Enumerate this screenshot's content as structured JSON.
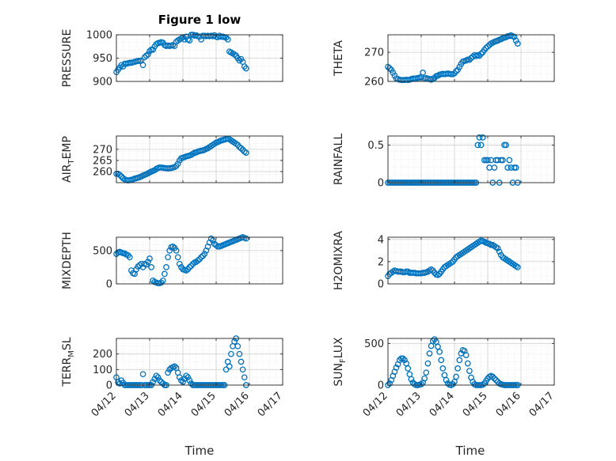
{
  "figure": {
    "title": "Figure 1 low",
    "xlabel": "Time",
    "xticks": [
      "04/12",
      "04/13",
      "04/14",
      "04/15",
      "04/16",
      "04/17"
    ],
    "marker_color": "#0072BD",
    "grid_color": "#dedede"
  },
  "chart_data": [
    {
      "type": "scatter",
      "ylabel": "PRESSURE",
      "ylim": [
        900,
        1000
      ],
      "yticks": [
        900,
        950,
        1000
      ],
      "xlim": [
        0,
        5
      ],
      "grid": "on",
      "x": [
        0.0,
        0.05,
        0.1,
        0.15,
        0.2,
        0.25,
        0.3,
        0.35,
        0.4,
        0.45,
        0.5,
        0.55,
        0.6,
        0.65,
        0.7,
        0.75,
        0.8,
        0.85,
        0.9,
        0.95,
        1.0,
        1.05,
        1.1,
        1.15,
        1.2,
        1.25,
        1.3,
        1.35,
        1.4,
        1.45,
        1.5,
        1.55,
        1.6,
        1.65,
        1.7,
        1.75,
        1.8,
        1.85,
        1.9,
        1.95,
        2.0,
        2.05,
        2.1,
        2.15,
        2.2,
        2.25,
        2.3,
        2.35,
        2.4,
        2.45,
        2.5,
        2.55,
        2.6,
        2.65,
        2.7,
        2.75,
        2.8,
        2.85,
        2.9,
        2.95,
        3.0,
        3.05,
        3.1,
        3.15,
        3.2,
        3.25,
        3.3,
        3.35,
        3.4,
        3.45,
        3.5,
        3.55,
        3.6,
        3.65,
        3.7,
        3.75,
        3.8,
        3.85,
        3.9
      ],
      "values": [
        920,
        925,
        930,
        935,
        932,
        938,
        938,
        939,
        940,
        940,
        941,
        942,
        943,
        944,
        944,
        945,
        935,
        952,
        955,
        958,
        965,
        968,
        968,
        975,
        980,
        982,
        983,
        984,
        983,
        978,
        976,
        977,
        976,
        977,
        978,
        976,
        985,
        988,
        990,
        992,
        995,
        990,
        996,
        990,
        988,
        1000,
        1000,
        998,
        999,
        997,
        996,
        990,
        998,
        998,
        997,
        998,
        997,
        998,
        997,
        999,
        996,
        995,
        998,
        996,
        996,
        995,
        994,
        990,
        964,
        962,
        960,
        958,
        955,
        950,
        945,
        948,
        942,
        932,
        928
      ]
    },
    {
      "type": "scatter",
      "ylabel": "THETA",
      "ylim": [
        260,
        276
      ],
      "yticks": [
        260,
        270
      ],
      "xlim": [
        0,
        5
      ],
      "grid": "on",
      "x": [
        0.0,
        0.05,
        0.1,
        0.15,
        0.2,
        0.25,
        0.3,
        0.35,
        0.4,
        0.45,
        0.5,
        0.55,
        0.6,
        0.65,
        0.7,
        0.75,
        0.8,
        0.85,
        0.9,
        0.95,
        1.0,
        1.05,
        1.1,
        1.15,
        1.2,
        1.25,
        1.3,
        1.35,
        1.4,
        1.45,
        1.5,
        1.55,
        1.6,
        1.65,
        1.7,
        1.75,
        1.8,
        1.85,
        1.9,
        1.95,
        2.0,
        2.05,
        2.1,
        2.15,
        2.2,
        2.25,
        2.3,
        2.35,
        2.4,
        2.45,
        2.5,
        2.55,
        2.6,
        2.65,
        2.7,
        2.75,
        2.8,
        2.85,
        2.9,
        2.95,
        3.0,
        3.05,
        3.1,
        3.15,
        3.2,
        3.25,
        3.3,
        3.35,
        3.4,
        3.45,
        3.5,
        3.55,
        3.6,
        3.65,
        3.7,
        3.75,
        3.8,
        3.85,
        3.9
      ],
      "values": [
        265,
        264.5,
        264,
        263,
        262,
        261,
        260.8,
        260.6,
        260.5,
        260.5,
        260.5,
        260.6,
        260.5,
        260.6,
        260.8,
        261,
        261,
        261,
        261.2,
        261.3,
        261.5,
        263,
        261,
        261.1,
        261,
        260.8,
        260.6,
        261,
        261.2,
        261.8,
        262,
        262.3,
        262.5,
        262.6,
        262.5,
        262.6,
        262.7,
        262.6,
        262.5,
        262.5,
        262.8,
        263.5,
        264,
        265,
        266,
        266.8,
        267,
        267.2,
        267.5,
        267.4,
        268,
        268.5,
        269,
        268.7,
        269,
        268.8,
        269.5,
        270,
        270.8,
        271.5,
        272,
        272.5,
        273,
        273.3,
        273.6,
        273.8,
        274,
        274.3,
        274.5,
        274.8,
        275,
        275.2,
        275.5,
        275.6,
        275.8,
        275.5,
        275.3,
        274,
        273
      ]
    },
    {
      "type": "scatter",
      "ylabel": "AIR_TEMP",
      "ylim": [
        255,
        276
      ],
      "yticks": [
        260,
        265,
        270
      ],
      "xlim": [
        0,
        5
      ],
      "grid": "on",
      "x": [
        0.0,
        0.05,
        0.1,
        0.15,
        0.2,
        0.25,
        0.3,
        0.35,
        0.4,
        0.45,
        0.5,
        0.55,
        0.6,
        0.65,
        0.7,
        0.75,
        0.8,
        0.85,
        0.9,
        0.95,
        1.0,
        1.05,
        1.1,
        1.15,
        1.2,
        1.25,
        1.3,
        1.35,
        1.4,
        1.45,
        1.5,
        1.55,
        1.6,
        1.65,
        1.7,
        1.75,
        1.8,
        1.85,
        1.9,
        1.95,
        2.0,
        2.05,
        2.1,
        2.15,
        2.2,
        2.25,
        2.3,
        2.35,
        2.4,
        2.45,
        2.5,
        2.55,
        2.6,
        2.65,
        2.7,
        2.75,
        2.8,
        2.85,
        2.9,
        2.95,
        3.0,
        3.05,
        3.1,
        3.15,
        3.2,
        3.25,
        3.3,
        3.35,
        3.4,
        3.45,
        3.5,
        3.55,
        3.6,
        3.65,
        3.7,
        3.75,
        3.8,
        3.85,
        3.9
      ],
      "values": [
        259,
        259,
        258.5,
        257.8,
        257,
        256.5,
        256.2,
        256,
        256.1,
        256.3,
        256.5,
        256.8,
        257,
        257.2,
        257.5,
        257.8,
        258.2,
        258.5,
        258.8,
        259.2,
        259.6,
        260,
        260.3,
        260.6,
        261.2,
        261.6,
        261.8,
        261.8,
        261.7,
        261.6,
        261.5,
        261.4,
        261.5,
        261.6,
        261.8,
        262,
        262.5,
        263.5,
        265,
        266,
        266.2,
        266.5,
        266.8,
        267,
        267.2,
        267.5,
        268,
        268.5,
        268.6,
        269,
        269.2,
        269.4,
        269.5,
        269.8,
        270.2,
        270.5,
        271,
        271.5,
        272,
        272.5,
        273,
        273.3,
        273.6,
        274,
        274.2,
        274.4,
        274.6,
        274.8,
        274.5,
        274,
        273.5,
        273,
        272.5,
        272,
        271,
        270.5,
        269.8,
        269,
        268.5
      ]
    },
    {
      "type": "scatter",
      "ylabel": "RAINFALL",
      "ylim": [
        0,
        0.62
      ],
      "yticks": [
        0,
        0.5
      ],
      "xlim": [
        0,
        5
      ],
      "grid": "on",
      "x": [
        0.0,
        0.05,
        0.1,
        0.15,
        0.2,
        0.25,
        0.3,
        0.35,
        0.4,
        0.45,
        0.5,
        0.55,
        0.6,
        0.65,
        0.7,
        0.75,
        0.8,
        0.85,
        0.9,
        0.95,
        1.0,
        1.05,
        1.1,
        1.15,
        1.2,
        1.25,
        1.3,
        1.35,
        1.4,
        1.45,
        1.5,
        1.55,
        1.6,
        1.65,
        1.7,
        1.75,
        1.8,
        1.85,
        1.9,
        1.95,
        2.0,
        2.05,
        2.1,
        2.15,
        2.2,
        2.25,
        2.3,
        2.35,
        2.4,
        2.45,
        2.5,
        2.55,
        2.6,
        2.65,
        2.7,
        2.75,
        2.8,
        2.85,
        2.9,
        2.95,
        3.0,
        3.05,
        3.1,
        3.15,
        3.2,
        3.25,
        3.3,
        3.35,
        3.4,
        3.45,
        3.5,
        3.55,
        3.6,
        3.65,
        3.7,
        3.75,
        3.8,
        3.85,
        3.9
      ],
      "values": [
        0,
        0,
        0,
        0,
        0,
        0,
        0,
        0,
        0,
        0,
        0,
        0,
        0,
        0,
        0,
        0,
        0,
        0,
        0,
        0,
        0,
        0,
        0,
        0,
        0,
        0,
        0,
        0,
        0,
        0,
        0,
        0,
        0,
        0,
        0,
        0,
        0,
        0,
        0,
        0,
        0,
        0,
        0,
        0,
        0,
        0,
        0,
        0,
        0,
        0,
        0,
        0,
        0,
        0,
        0.5,
        0.6,
        0.5,
        0.6,
        0.3,
        0.3,
        0.3,
        0.2,
        0.3,
        0,
        0.2,
        0.3,
        0.3,
        0,
        0.3,
        0.3,
        0.5,
        0.5,
        0.2,
        0.3,
        0.2,
        0,
        0.2,
        0.2,
        0
      ]
    },
    {
      "type": "scatter",
      "ylabel": "MIXDEPTH",
      "ylim": [
        0,
        700
      ],
      "yticks": [
        0,
        500
      ],
      "xlim": [
        0,
        5
      ],
      "grid": "on",
      "x": [
        0.0,
        0.05,
        0.1,
        0.15,
        0.2,
        0.25,
        0.3,
        0.35,
        0.4,
        0.45,
        0.5,
        0.55,
        0.6,
        0.65,
        0.7,
        0.75,
        0.8,
        0.85,
        0.9,
        0.95,
        1.0,
        1.05,
        1.1,
        1.15,
        1.2,
        1.25,
        1.3,
        1.35,
        1.4,
        1.45,
        1.5,
        1.55,
        1.6,
        1.65,
        1.7,
        1.75,
        1.8,
        1.85,
        1.9,
        1.95,
        2.0,
        2.05,
        2.1,
        2.15,
        2.2,
        2.25,
        2.3,
        2.35,
        2.4,
        2.45,
        2.5,
        2.55,
        2.6,
        2.65,
        2.7,
        2.75,
        2.8,
        2.85,
        2.9,
        2.95,
        3.0,
        3.05,
        3.1,
        3.15,
        3.2,
        3.25,
        3.3,
        3.35,
        3.4,
        3.45,
        3.5,
        3.55,
        3.6,
        3.65,
        3.7,
        3.75,
        3.8,
        3.85,
        3.9
      ],
      "values": [
        450,
        470,
        480,
        470,
        460,
        455,
        440,
        430,
        400,
        200,
        160,
        150,
        220,
        260,
        280,
        300,
        250,
        300,
        290,
        330,
        380,
        250,
        50,
        30,
        20,
        10,
        10,
        20,
        50,
        150,
        250,
        400,
        500,
        550,
        560,
        540,
        500,
        400,
        300,
        250,
        220,
        210,
        200,
        220,
        250,
        270,
        300,
        320,
        330,
        350,
        370,
        400,
        420,
        450,
        500,
        560,
        620,
        680,
        650,
        600,
        580,
        560,
        560,
        570,
        580,
        590,
        600,
        610,
        620,
        630,
        640,
        650,
        660,
        670,
        680,
        690,
        700,
        690,
        680
      ]
    },
    {
      "type": "scatter",
      "ylabel": "H2OMIXRA",
      "ylim": [
        0,
        4.2
      ],
      "yticks": [
        0,
        2,
        4
      ],
      "xlim": [
        0,
        5
      ],
      "grid": "on",
      "x": [
        0.0,
        0.05,
        0.1,
        0.15,
        0.2,
        0.25,
        0.3,
        0.35,
        0.4,
        0.45,
        0.5,
        0.55,
        0.6,
        0.65,
        0.7,
        0.75,
        0.8,
        0.85,
        0.9,
        0.95,
        1.0,
        1.05,
        1.1,
        1.15,
        1.2,
        1.25,
        1.3,
        1.35,
        1.4,
        1.45,
        1.5,
        1.55,
        1.6,
        1.65,
        1.7,
        1.75,
        1.8,
        1.85,
        1.9,
        1.95,
        2.0,
        2.05,
        2.1,
        2.15,
        2.2,
        2.25,
        2.3,
        2.35,
        2.4,
        2.45,
        2.5,
        2.55,
        2.6,
        2.65,
        2.7,
        2.75,
        2.8,
        2.85,
        2.9,
        2.95,
        3.0,
        3.05,
        3.1,
        3.15,
        3.2,
        3.25,
        3.3,
        3.35,
        3.4,
        3.45,
        3.5,
        3.55,
        3.6,
        3.65,
        3.7,
        3.75,
        3.8,
        3.85,
        3.9
      ],
      "values": [
        0.7,
        0.9,
        1.0,
        1.1,
        1.2,
        1.15,
        1.1,
        1.1,
        1.1,
        1.05,
        1.05,
        1.1,
        1.1,
        1.0,
        1.0,
        1.0,
        1.0,
        0.95,
        0.95,
        0.95,
        0.95,
        1.0,
        1.0,
        1.05,
        1.1,
        1.2,
        1.3,
        1.2,
        1.0,
        0.85,
        0.8,
        0.9,
        1.1,
        1.3,
        1.5,
        1.6,
        1.7,
        1.8,
        1.9,
        2.0,
        2.2,
        2.4,
        2.5,
        2.6,
        2.7,
        2.8,
        2.9,
        3.0,
        3.1,
        3.2,
        3.3,
        3.4,
        3.5,
        3.6,
        3.7,
        3.8,
        3.9,
        3.85,
        3.8,
        3.7,
        3.65,
        3.6,
        3.5,
        3.5,
        3.4,
        3.3,
        3.2,
        2.9,
        2.6,
        2.4,
        2.3,
        2.2,
        2.1,
        2.0,
        1.9,
        1.8,
        1.7,
        1.6,
        1.5
      ]
    },
    {
      "type": "scatter",
      "ylabel": "TERR_MSL",
      "ylim": [
        0,
        300
      ],
      "yticks": [
        0,
        100,
        200
      ],
      "xlim": [
        0,
        5
      ],
      "grid": "on",
      "x": [
        0.0,
        0.05,
        0.1,
        0.15,
        0.2,
        0.25,
        0.3,
        0.35,
        0.4,
        0.45,
        0.5,
        0.55,
        0.6,
        0.65,
        0.7,
        0.75,
        0.8,
        0.85,
        0.9,
        0.95,
        1.0,
        1.05,
        1.1,
        1.15,
        1.2,
        1.25,
        1.3,
        1.35,
        1.4,
        1.45,
        1.5,
        1.55,
        1.6,
        1.65,
        1.7,
        1.75,
        1.8,
        1.85,
        1.9,
        1.95,
        2.0,
        2.05,
        2.1,
        2.15,
        2.2,
        2.25,
        2.3,
        2.35,
        2.4,
        2.45,
        2.5,
        2.55,
        2.6,
        2.65,
        2.7,
        2.75,
        2.8,
        2.85,
        2.9,
        2.95,
        3.0,
        3.05,
        3.1,
        3.15,
        3.2,
        3.25,
        3.3,
        3.35,
        3.4,
        3.45,
        3.5,
        3.55,
        3.6,
        3.65,
        3.7,
        3.75,
        3.8,
        3.85,
        3.9
      ],
      "values": [
        50,
        20,
        10,
        30,
        15,
        0,
        0,
        0,
        0,
        0,
        0,
        0,
        0,
        0,
        0,
        0,
        70,
        0,
        0,
        0,
        0,
        0,
        20,
        40,
        60,
        50,
        30,
        20,
        10,
        0,
        0,
        80,
        100,
        110,
        115,
        120,
        110,
        80,
        50,
        30,
        20,
        40,
        60,
        50,
        30,
        10,
        0,
        0,
        0,
        0,
        0,
        0,
        0,
        0,
        0,
        0,
        0,
        0,
        0,
        0,
        0,
        0,
        0,
        0,
        0,
        0,
        100,
        150,
        120,
        200,
        250,
        280,
        300,
        250,
        200,
        150,
        100,
        50,
        0
      ]
    },
    {
      "type": "scatter",
      "ylabel": "SUN_FLUX",
      "ylim": [
        0,
        560
      ],
      "yticks": [
        0,
        500
      ],
      "xlim": [
        0,
        5
      ],
      "grid": "on",
      "x": [
        0.0,
        0.05,
        0.1,
        0.15,
        0.2,
        0.25,
        0.3,
        0.35,
        0.4,
        0.45,
        0.5,
        0.55,
        0.6,
        0.65,
        0.7,
        0.75,
        0.8,
        0.85,
        0.9,
        0.95,
        1.0,
        1.05,
        1.1,
        1.15,
        1.2,
        1.25,
        1.3,
        1.35,
        1.4,
        1.45,
        1.5,
        1.55,
        1.6,
        1.65,
        1.7,
        1.75,
        1.8,
        1.85,
        1.9,
        1.95,
        2.0,
        2.05,
        2.1,
        2.15,
        2.2,
        2.25,
        2.3,
        2.35,
        2.4,
        2.45,
        2.5,
        2.55,
        2.6,
        2.65,
        2.7,
        2.75,
        2.8,
        2.85,
        2.9,
        2.95,
        3.0,
        3.05,
        3.1,
        3.15,
        3.2,
        3.25,
        3.3,
        3.35,
        3.4,
        3.45,
        3.5,
        3.55,
        3.6,
        3.65,
        3.7,
        3.75,
        3.8,
        3.85,
        3.9
      ],
      "values": [
        0,
        20,
        60,
        110,
        160,
        210,
        250,
        300,
        320,
        320,
        300,
        260,
        200,
        130,
        70,
        30,
        10,
        0,
        0,
        5,
        10,
        30,
        80,
        150,
        260,
        380,
        470,
        530,
        550,
        520,
        460,
        400,
        300,
        200,
        120,
        60,
        20,
        5,
        0,
        10,
        40,
        100,
        200,
        300,
        380,
        420,
        410,
        360,
        260,
        170,
        90,
        40,
        10,
        0,
        0,
        0,
        0,
        5,
        20,
        50,
        80,
        100,
        110,
        100,
        80,
        60,
        40,
        20,
        10,
        5,
        0,
        0,
        0,
        0,
        0,
        0,
        0,
        0,
        0
      ]
    }
  ]
}
